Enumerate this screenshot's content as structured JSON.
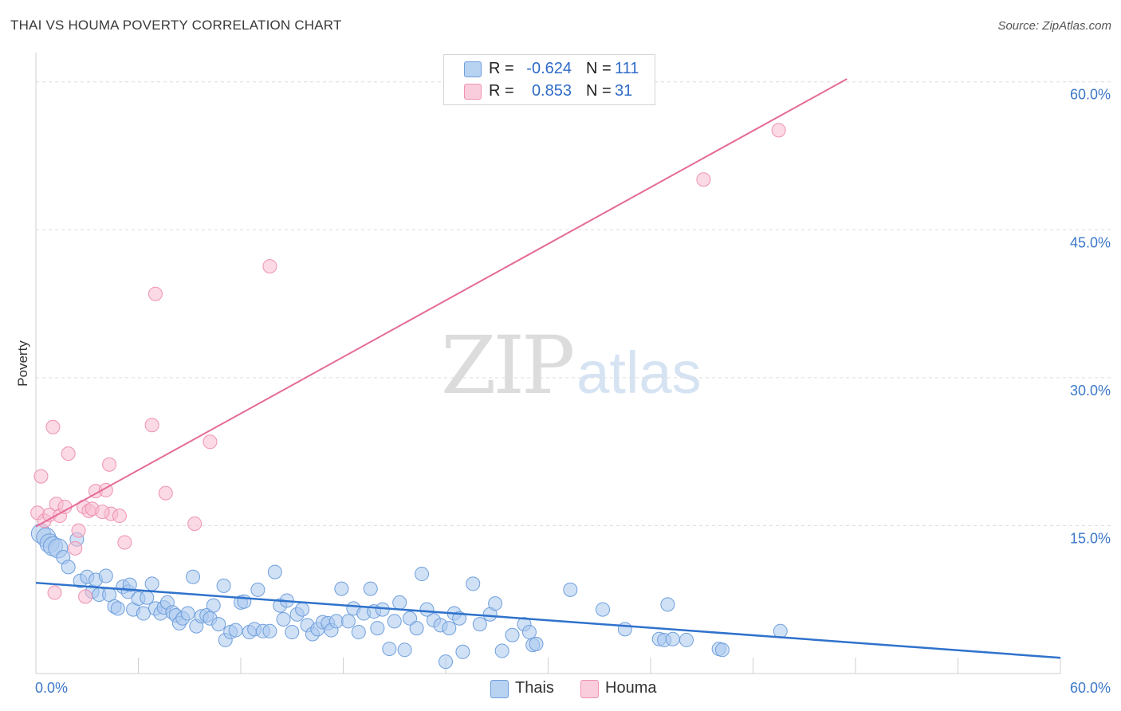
{
  "title": "THAI VS HOUMA POVERTY CORRELATION CHART",
  "source": "Source: ZipAtlas.com",
  "watermark": {
    "zip": "ZIP",
    "atlas": "atlas"
  },
  "colors": {
    "thais_fill": "#a9c8ef",
    "thais_stroke": "#6f9fdc",
    "thais_line": "#2f72cc",
    "houma_fill": "#f7bcd0",
    "houma_stroke": "#ee92b2",
    "houma_line": "#e56a98",
    "tick_text": "#3c78c8",
    "grid": "#dcdcdc"
  },
  "legend": {
    "rows": [
      {
        "name": "Thais",
        "r_label": "R =",
        "r_value": "-0.624",
        "n_label": "N =",
        "n_value": "111"
      },
      {
        "name": "Houma",
        "r_label": "R =",
        "r_value": "0.853",
        "n_label": "N =",
        "n_value": "31"
      }
    ]
  },
  "bottom_legend": [
    "Thais",
    "Houma"
  ],
  "chart_data": {
    "type": "scatter",
    "title": "THAI VS HOUMA POVERTY CORRELATION CHART",
    "xlabel": "",
    "ylabel": "Poverty",
    "xlim": [
      0,
      60
    ],
    "ylim": [
      0,
      62
    ],
    "x_ticks": [
      {
        "value": 0,
        "label": "0.0%"
      },
      {
        "value": 60,
        "label": "60.0%"
      }
    ],
    "y_ticks": [
      {
        "value": 15,
        "label": "15.0%"
      },
      {
        "value": 30,
        "label": "30.0%"
      },
      {
        "value": 45,
        "label": "45.0%"
      },
      {
        "value": 60,
        "label": "60.0%"
      }
    ],
    "grid": true,
    "series": [
      {
        "name": "Thais",
        "trend": {
          "x": [
            0,
            60
          ],
          "y": [
            9.2,
            1.6
          ]
        },
        "points": [
          [
            0.3,
            14.2
          ],
          [
            0.6,
            13.8
          ],
          [
            0.8,
            13.2
          ],
          [
            1.0,
            12.9
          ],
          [
            1.3,
            12.7
          ],
          [
            1.6,
            11.8
          ],
          [
            1.9,
            10.8
          ],
          [
            2.4,
            13.6
          ],
          [
            2.6,
            9.4
          ],
          [
            3.0,
            9.8
          ],
          [
            3.3,
            8.3
          ],
          [
            3.5,
            9.5
          ],
          [
            3.7,
            8.0
          ],
          [
            4.1,
            9.9
          ],
          [
            4.3,
            8.0
          ],
          [
            4.6,
            6.8
          ],
          [
            4.8,
            6.6
          ],
          [
            5.1,
            8.8
          ],
          [
            5.4,
            8.3
          ],
          [
            5.5,
            9.0
          ],
          [
            5.7,
            6.5
          ],
          [
            6.0,
            7.6
          ],
          [
            6.3,
            6.1
          ],
          [
            6.5,
            7.7
          ],
          [
            6.8,
            9.1
          ],
          [
            7.0,
            6.6
          ],
          [
            7.3,
            6.1
          ],
          [
            7.5,
            6.7
          ],
          [
            7.7,
            7.2
          ],
          [
            8.0,
            6.2
          ],
          [
            8.2,
            5.9
          ],
          [
            8.4,
            5.1
          ],
          [
            8.6,
            5.6
          ],
          [
            8.9,
            6.1
          ],
          [
            9.2,
            9.8
          ],
          [
            9.4,
            4.8
          ],
          [
            9.7,
            5.8
          ],
          [
            10.0,
            5.9
          ],
          [
            10.2,
            5.6
          ],
          [
            10.4,
            6.9
          ],
          [
            10.7,
            5.0
          ],
          [
            11.0,
            8.9
          ],
          [
            11.1,
            3.4
          ],
          [
            11.4,
            4.2
          ],
          [
            11.7,
            4.4
          ],
          [
            12.0,
            7.2
          ],
          [
            12.2,
            7.3
          ],
          [
            12.5,
            4.2
          ],
          [
            12.8,
            4.5
          ],
          [
            13.0,
            8.5
          ],
          [
            13.3,
            4.3
          ],
          [
            13.7,
            4.3
          ],
          [
            14.0,
            10.3
          ],
          [
            14.3,
            6.9
          ],
          [
            14.5,
            5.5
          ],
          [
            14.7,
            7.4
          ],
          [
            15.0,
            4.2
          ],
          [
            15.3,
            6.0
          ],
          [
            15.6,
            6.5
          ],
          [
            15.9,
            4.9
          ],
          [
            16.2,
            4.0
          ],
          [
            16.5,
            4.5
          ],
          [
            16.8,
            5.2
          ],
          [
            17.1,
            5.1
          ],
          [
            17.3,
            4.4
          ],
          [
            17.6,
            5.3
          ],
          [
            17.9,
            8.6
          ],
          [
            18.3,
            5.3
          ],
          [
            18.6,
            6.6
          ],
          [
            18.9,
            4.2
          ],
          [
            19.2,
            6.1
          ],
          [
            19.6,
            8.6
          ],
          [
            19.8,
            6.3
          ],
          [
            20.0,
            4.6
          ],
          [
            20.3,
            6.5
          ],
          [
            20.7,
            2.5
          ],
          [
            21.0,
            5.3
          ],
          [
            21.3,
            7.2
          ],
          [
            21.6,
            2.4
          ],
          [
            21.9,
            5.6
          ],
          [
            22.3,
            4.6
          ],
          [
            22.6,
            10.1
          ],
          [
            22.9,
            6.5
          ],
          [
            23.3,
            5.4
          ],
          [
            23.7,
            4.9
          ],
          [
            24.0,
            1.2
          ],
          [
            24.2,
            4.6
          ],
          [
            24.5,
            6.1
          ],
          [
            24.8,
            5.6
          ],
          [
            25.0,
            2.2
          ],
          [
            25.6,
            9.1
          ],
          [
            26.0,
            5.0
          ],
          [
            26.6,
            6.0
          ],
          [
            26.9,
            7.1
          ],
          [
            27.3,
            2.3
          ],
          [
            27.9,
            3.9
          ],
          [
            28.6,
            5.0
          ],
          [
            28.9,
            4.2
          ],
          [
            29.1,
            2.9
          ],
          [
            29.3,
            3.0
          ],
          [
            31.3,
            8.5
          ],
          [
            33.2,
            6.5
          ],
          [
            34.5,
            4.5
          ],
          [
            36.5,
            3.5
          ],
          [
            36.8,
            3.4
          ],
          [
            37.0,
            7.0
          ],
          [
            37.3,
            3.5
          ],
          [
            38.1,
            3.4
          ],
          [
            40.0,
            2.5
          ],
          [
            43.6,
            4.3
          ],
          [
            40.2,
            2.4
          ]
        ],
        "sizes": "small except a few large near origin"
      },
      {
        "name": "Houma",
        "trend": {
          "x": [
            0,
            47.5
          ],
          "y": [
            14.9,
            60.3
          ]
        },
        "points": [
          [
            0.1,
            16.3
          ],
          [
            0.3,
            20.0
          ],
          [
            0.5,
            15.5
          ],
          [
            0.8,
            16.1
          ],
          [
            1.0,
            25.0
          ],
          [
            1.1,
            8.2
          ],
          [
            1.2,
            17.2
          ],
          [
            1.4,
            16.0
          ],
          [
            1.7,
            16.9
          ],
          [
            1.9,
            22.3
          ],
          [
            2.3,
            12.7
          ],
          [
            2.5,
            14.5
          ],
          [
            2.8,
            16.9
          ],
          [
            2.9,
            7.8
          ],
          [
            3.1,
            16.5
          ],
          [
            3.3,
            16.7
          ],
          [
            3.5,
            18.5
          ],
          [
            4.1,
            18.6
          ],
          [
            4.3,
            21.2
          ],
          [
            4.4,
            16.2
          ],
          [
            4.9,
            16.0
          ],
          [
            5.2,
            13.3
          ],
          [
            6.8,
            25.2
          ],
          [
            7.0,
            38.5
          ],
          [
            7.6,
            18.3
          ],
          [
            9.3,
            15.2
          ],
          [
            10.2,
            23.5
          ],
          [
            13.7,
            41.3
          ],
          [
            39.1,
            50.1
          ],
          [
            43.5,
            55.1
          ],
          [
            3.9,
            16.4
          ]
        ]
      }
    ]
  }
}
